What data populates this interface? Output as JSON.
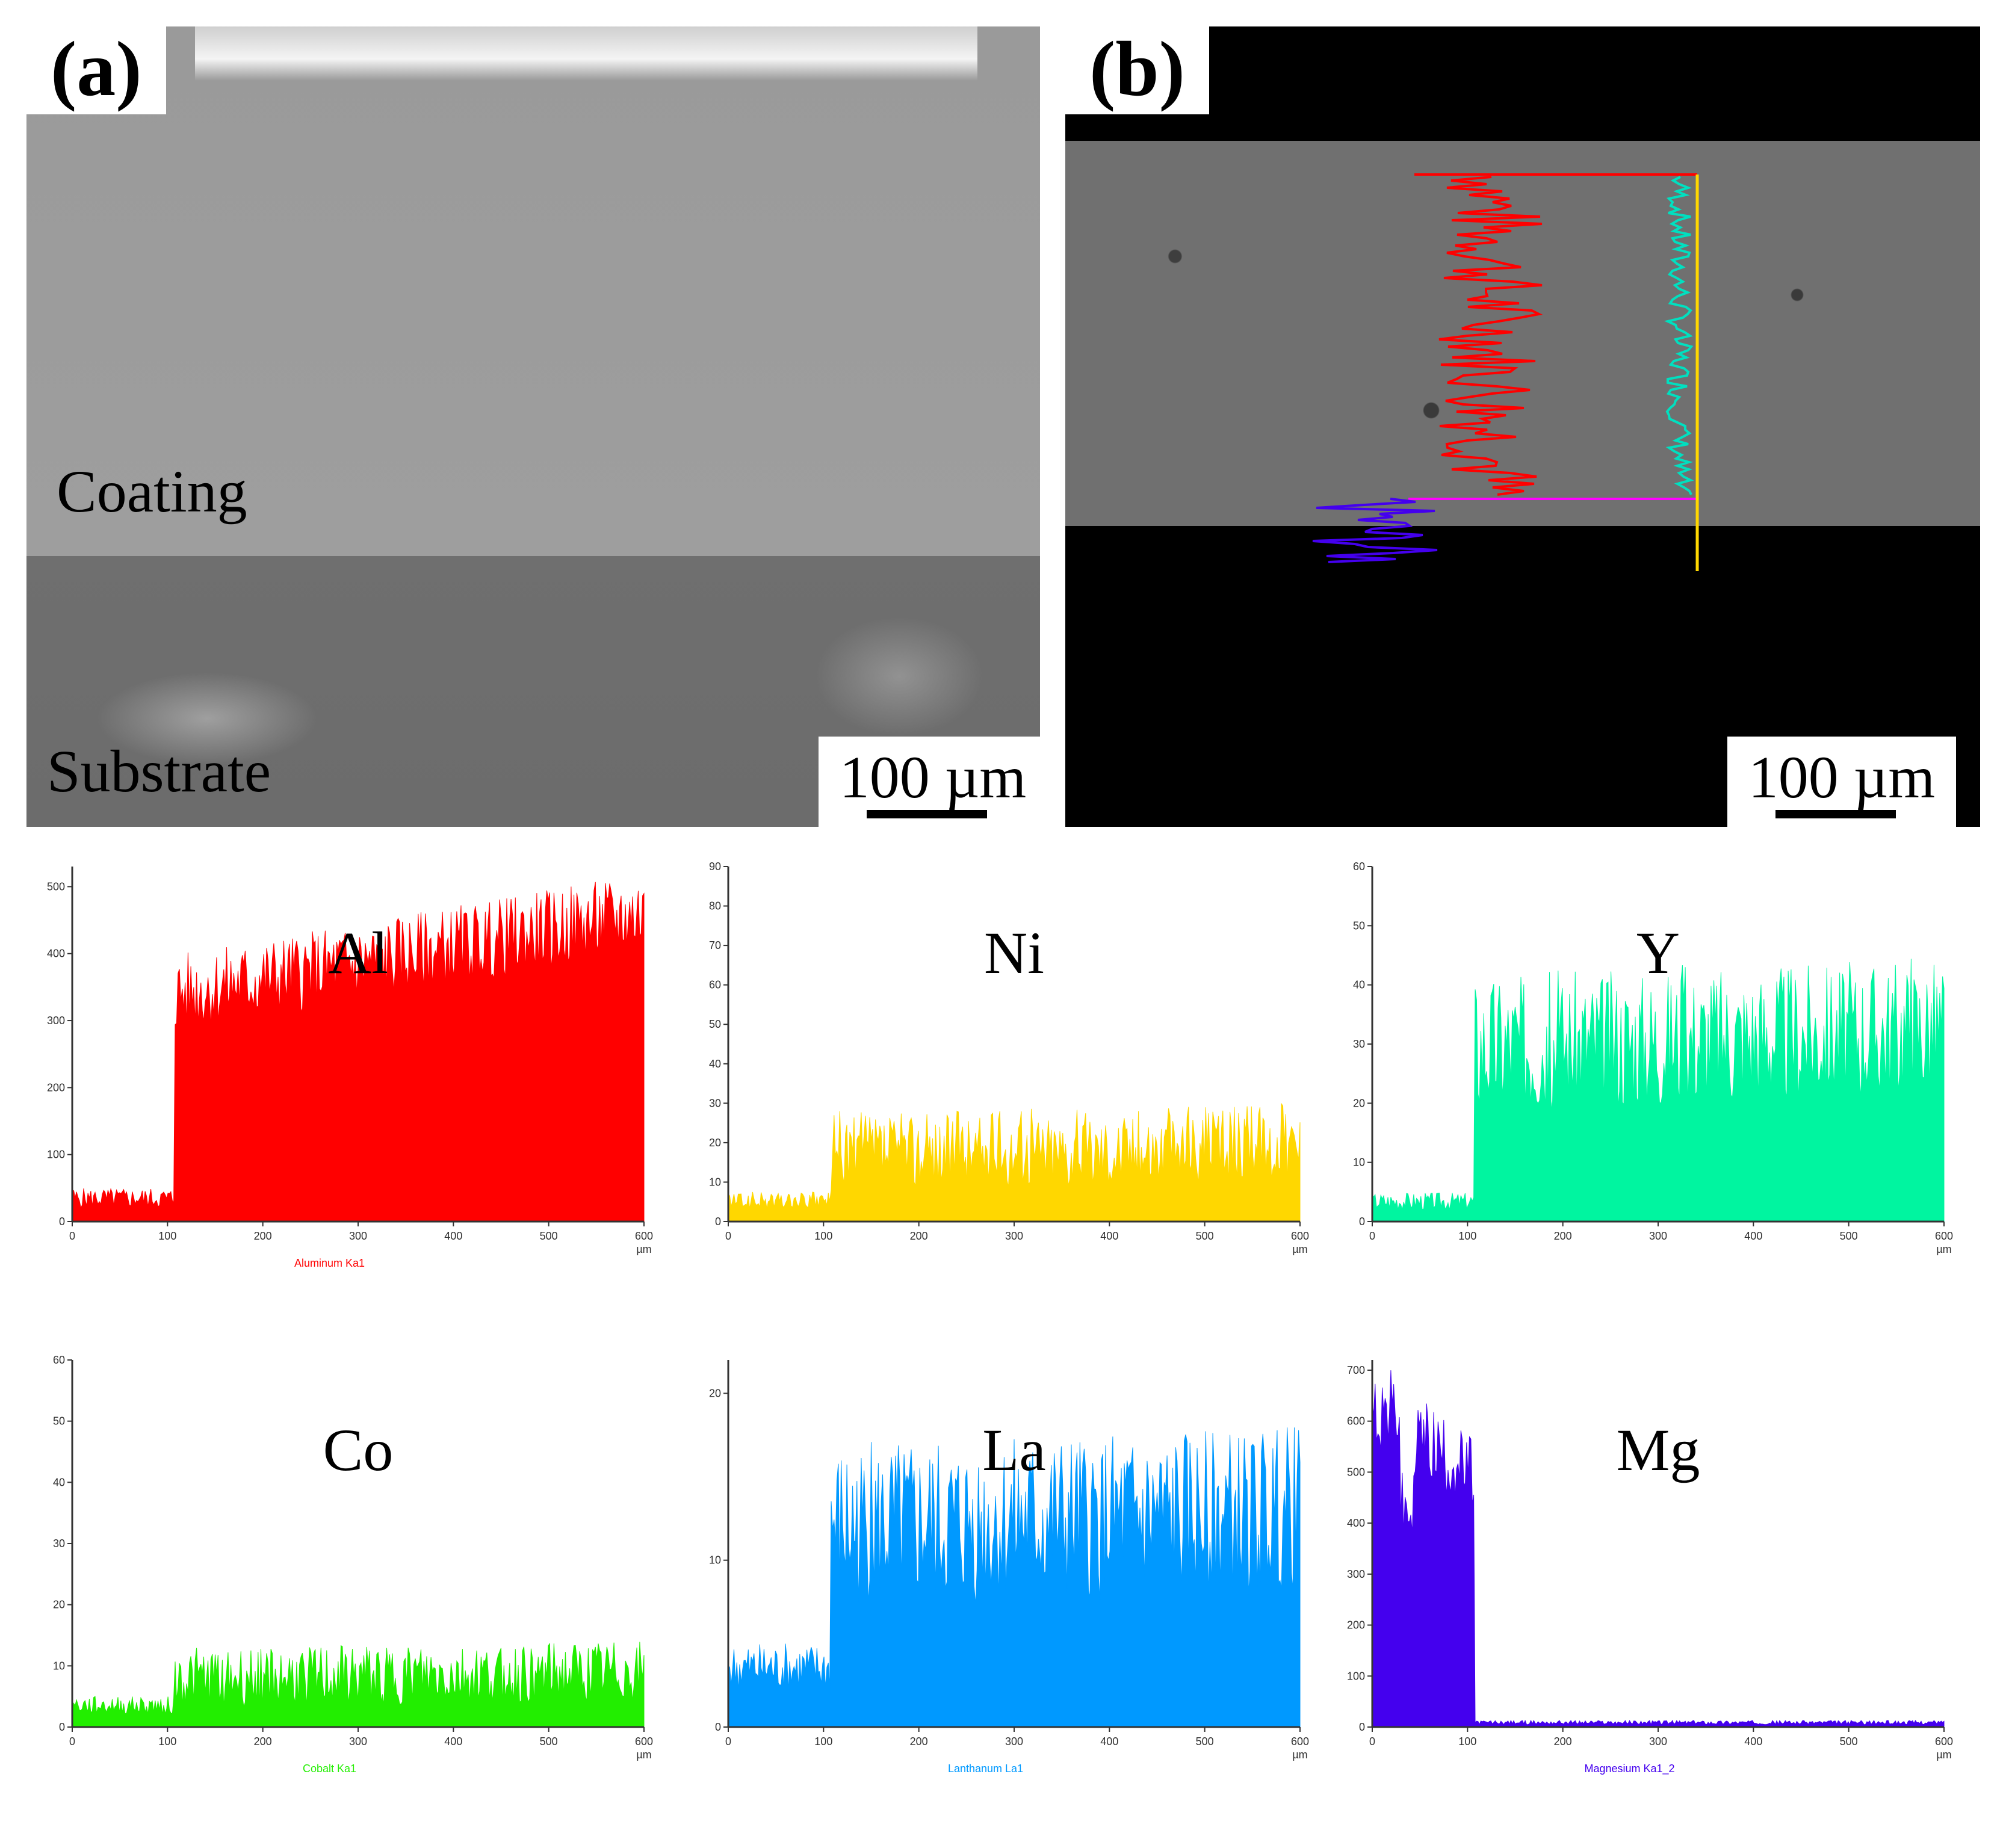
{
  "panels": {
    "a": {
      "label": "(a)",
      "coating_label": "Coating",
      "substrate_label": "Substrate",
      "scale_bar": "100 µm"
    },
    "b": {
      "label": "(b)",
      "scale_bar": "100 µm"
    }
  },
  "chart_data": [
    {
      "type": "area",
      "element": "Al",
      "footer": "Aluminum Ka1",
      "color": "#ff0000",
      "x_unit": "µm",
      "xlim": [
        0,
        600
      ],
      "xticks": [
        0,
        100,
        200,
        300,
        400,
        500,
        600
      ],
      "ylim": [
        0,
        530
      ],
      "yticks": [
        0,
        100,
        200,
        300,
        400,
        500
      ],
      "baseline_before": 20,
      "jump_at": 108,
      "level_after": [
        340,
        460
      ],
      "noise": 60
    },
    {
      "type": "area",
      "element": "Ni",
      "footer": "",
      "color": "#ffd700",
      "x_unit": "µm",
      "xlim": [
        0,
        600
      ],
      "xticks": [
        0,
        100,
        200,
        300,
        400,
        500,
        600
      ],
      "ylim": [
        0,
        90
      ],
      "yticks": [
        0,
        10,
        20,
        30,
        40,
        50,
        60,
        70,
        80,
        90
      ],
      "baseline_before": 3,
      "jump_at": 108,
      "level_after": [
        18,
        20
      ],
      "noise": 10
    },
    {
      "type": "area",
      "element": "Y",
      "footer": "",
      "color": "#00f5a0",
      "x_unit": "µm",
      "xlim": [
        0,
        600
      ],
      "xticks": [
        0,
        100,
        200,
        300,
        400,
        500,
        600
      ],
      "ylim": [
        0,
        60
      ],
      "yticks": [
        0,
        10,
        20,
        30,
        40,
        50,
        60
      ],
      "baseline_before": 2,
      "jump_at": 108,
      "level_after": [
        30,
        33
      ],
      "noise": 12
    },
    {
      "type": "area",
      "element": "Co",
      "footer": "Cobalt Ka1",
      "color": "#22ee00",
      "x_unit": "µm",
      "xlim": [
        0,
        600
      ],
      "xticks": [
        0,
        100,
        200,
        300,
        400,
        500,
        600
      ],
      "ylim": [
        0,
        60
      ],
      "yticks": [
        0,
        10,
        20,
        30,
        40,
        50,
        60
      ],
      "baseline_before": 2,
      "jump_at": 108,
      "level_after": [
        8,
        9
      ],
      "noise": 5
    },
    {
      "type": "area",
      "element": "La",
      "footer": "Lanthanum La1",
      "color": "#0099ff",
      "x_unit": "µm",
      "xlim": [
        0,
        600
      ],
      "xticks": [
        0,
        100,
        200,
        300,
        400,
        500,
        600
      ],
      "ylim": [
        0,
        22
      ],
      "yticks": [
        0,
        10,
        20
      ],
      "baseline_before": 2,
      "jump_at": 108,
      "level_after": [
        12,
        13
      ],
      "noise": 5
    },
    {
      "type": "area",
      "element": "Mg",
      "footer": "Magnesium Ka1_2",
      "color": "#4400ee",
      "x_unit": "µm",
      "xlim": [
        0,
        600
      ],
      "xticks": [
        0,
        100,
        200,
        300,
        400,
        500,
        600
      ],
      "ylim": [
        0,
        720
      ],
      "yticks": [
        0,
        100,
        200,
        300,
        400,
        500,
        600,
        700
      ],
      "baseline_before": 560,
      "jump_at": 108,
      "level_after": [
        5,
        5
      ],
      "noise": 80
    }
  ]
}
